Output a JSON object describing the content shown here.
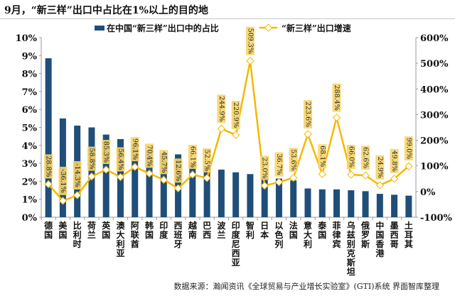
{
  "title": "9月，“新三样”出口中占比在1%以上的目的地",
  "source": "数据来源：瀚闻资讯《全球贸易与产业增长实验室》(GTI)系统  界面智库整理",
  "chart_data": {
    "type": "bar+line",
    "categories": [
      "德国",
      "美国",
      "比利时",
      "荷兰",
      "英国",
      "澳大利亚",
      "阿联酋",
      "韩国",
      "印度",
      "西班牙",
      "越南",
      "巴西",
      "波兰",
      "印度尼西亚",
      "智利",
      "日本",
      "以色列",
      "法国",
      "意大利",
      "泰国",
      "菲律宾",
      "乌兹别克斯坦",
      "俄罗斯",
      "中国香港",
      "墨西哥",
      "土耳其"
    ],
    "series": [
      {
        "name": "在中国“新三样”出口中的占比",
        "type": "bar",
        "axis": "left",
        "color": "#1f4e79",
        "values": [
          8.85,
          5.5,
          5.1,
          5.0,
          4.6,
          4.35,
          4.1,
          3.75,
          3.55,
          3.5,
          3.0,
          2.8,
          2.65,
          2.5,
          2.4,
          2.2,
          2.15,
          2.05,
          1.6,
          1.55,
          1.55,
          1.5,
          1.45,
          1.3,
          1.25,
          1.2
        ]
      },
      {
        "name": "“新三样”出口增速",
        "type": "line",
        "axis": "right",
        "color": "#f5b800",
        "values": [
          28.8,
          -36.1,
          -14.3,
          58.8,
          85.3,
          56.4,
          96.1,
          70.4,
          45.7,
          12.6,
          66.1,
          52.5,
          244.9,
          220.9,
          509.3,
          23.0,
          36.7,
          53.6,
          223.6,
          68.1,
          288.4,
          66.0,
          62.6,
          24.9,
          49.8,
          99.0
        ]
      }
    ],
    "left_axis": {
      "min": 0,
      "max": 10,
      "step": 1,
      "unit": "%"
    },
    "right_axis": {
      "min": -100,
      "max": 600,
      "step": 100,
      "unit": "%"
    },
    "legend": "top",
    "grid": false
  }
}
